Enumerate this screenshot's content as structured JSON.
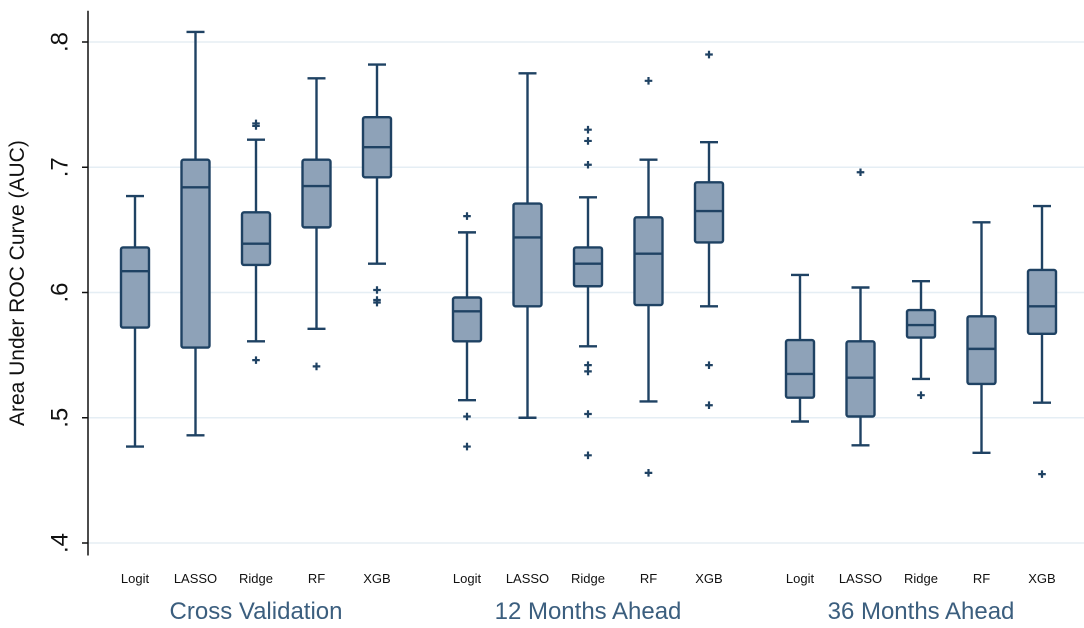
{
  "chart_data": {
    "type": "boxplot",
    "ylabel": "Area Under ROC Curve (AUC)",
    "ylim": [
      0.39,
      0.825
    ],
    "yticks": [
      ".4",
      ".5",
      ".6",
      ".7",
      ".8"
    ],
    "ytick_values": [
      0.4,
      0.5,
      0.6,
      0.7,
      0.8
    ],
    "grid": true,
    "colors": {
      "box_fill": "#8ea2b8",
      "box_stroke": "#1f4263",
      "grid": "#e5eef4",
      "group_label": "#3b5e7e"
    },
    "groups": [
      {
        "label": "Cross Validation",
        "models": [
          {
            "name": "Logit",
            "min": 0.477,
            "q1": 0.572,
            "median": 0.617,
            "q3": 0.636,
            "max": 0.677,
            "outliers": []
          },
          {
            "name": "LASSO",
            "min": 0.486,
            "q1": 0.556,
            "median": 0.684,
            "q3": 0.706,
            "max": 0.808,
            "outliers": []
          },
          {
            "name": "Ridge",
            "min": 0.561,
            "q1": 0.622,
            "median": 0.639,
            "q3": 0.664,
            "max": 0.722,
            "outliers": [
              0.546,
              0.733,
              0.735
            ]
          },
          {
            "name": "RF",
            "min": 0.571,
            "q1": 0.652,
            "median": 0.685,
            "q3": 0.706,
            "max": 0.771,
            "outliers": [
              0.541
            ]
          },
          {
            "name": "XGB",
            "min": 0.623,
            "q1": 0.692,
            "median": 0.716,
            "q3": 0.74,
            "max": 0.782,
            "outliers": [
              0.592,
              0.594,
              0.602
            ]
          }
        ]
      },
      {
        "label": "12 Months Ahead",
        "models": [
          {
            "name": "Logit",
            "min": 0.514,
            "q1": 0.561,
            "median": 0.585,
            "q3": 0.596,
            "max": 0.648,
            "outliers": [
              0.477,
              0.501,
              0.661
            ]
          },
          {
            "name": "LASSO",
            "min": 0.5,
            "q1": 0.589,
            "median": 0.644,
            "q3": 0.671,
            "max": 0.775,
            "outliers": []
          },
          {
            "name": "Ridge",
            "min": 0.557,
            "q1": 0.605,
            "median": 0.623,
            "q3": 0.636,
            "max": 0.676,
            "outliers": [
              0.47,
              0.503,
              0.537,
              0.542,
              0.702,
              0.721,
              0.73
            ]
          },
          {
            "name": "RF",
            "min": 0.513,
            "q1": 0.59,
            "median": 0.631,
            "q3": 0.66,
            "max": 0.706,
            "outliers": [
              0.456,
              0.769
            ]
          },
          {
            "name": "XGB",
            "min": 0.589,
            "q1": 0.64,
            "median": 0.665,
            "q3": 0.688,
            "max": 0.72,
            "outliers": [
              0.51,
              0.542,
              0.79
            ]
          }
        ]
      },
      {
        "label": "36 Months Ahead",
        "models": [
          {
            "name": "Logit",
            "min": 0.497,
            "q1": 0.516,
            "median": 0.535,
            "q3": 0.562,
            "max": 0.614,
            "outliers": []
          },
          {
            "name": "LASSO",
            "min": 0.478,
            "q1": 0.501,
            "median": 0.532,
            "q3": 0.561,
            "max": 0.604,
            "outliers": [
              0.696
            ]
          },
          {
            "name": "Ridge",
            "min": 0.531,
            "q1": 0.564,
            "median": 0.574,
            "q3": 0.586,
            "max": 0.609,
            "outliers": [
              0.518
            ]
          },
          {
            "name": "RF",
            "min": 0.472,
            "q1": 0.527,
            "median": 0.555,
            "q3": 0.581,
            "max": 0.656,
            "outliers": []
          },
          {
            "name": "XGB",
            "min": 0.512,
            "q1": 0.567,
            "median": 0.589,
            "q3": 0.618,
            "max": 0.669,
            "outliers": [
              0.455
            ]
          }
        ]
      }
    ]
  }
}
